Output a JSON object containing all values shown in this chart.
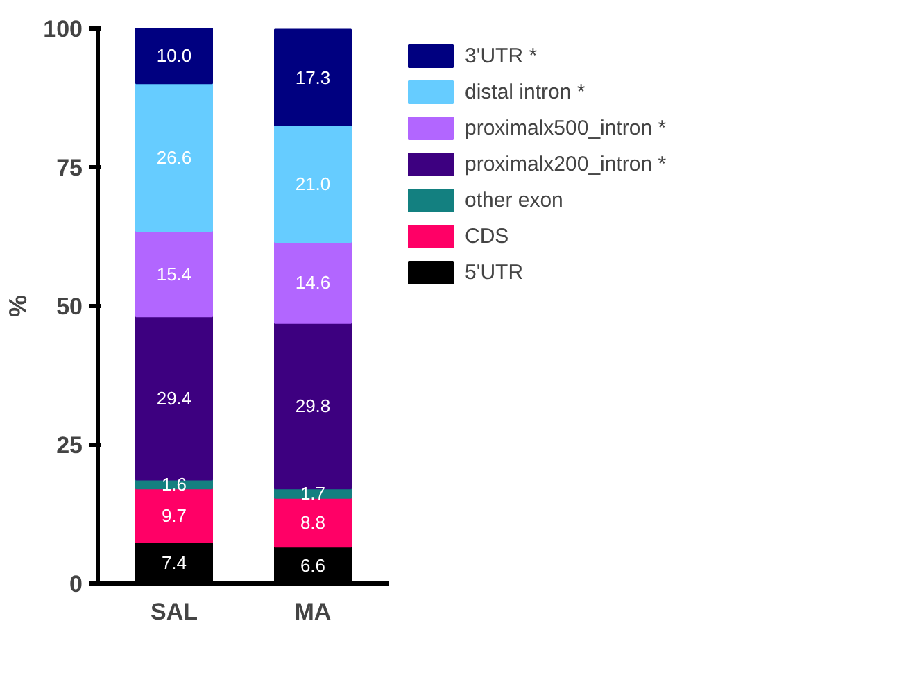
{
  "chart_data": {
    "type": "bar",
    "stacked": true,
    "ylabel": "%",
    "categories": [
      "SAL",
      "MA"
    ],
    "ylim": [
      0,
      100
    ],
    "yticks": [
      0,
      25,
      50,
      75,
      100
    ],
    "grid": false,
    "legend": "right",
    "series": [
      {
        "name": "5'UTR",
        "color": "#000000",
        "values": [
          7.4,
          6.6
        ],
        "value_labels": [
          "7.4",
          "6.6"
        ]
      },
      {
        "name": "CDS",
        "color": "#ff0066",
        "values": [
          9.7,
          8.8
        ],
        "value_labels": [
          "9.7",
          "8.8"
        ]
      },
      {
        "name": "other exon",
        "color": "#138080",
        "values": [
          1.6,
          1.7
        ],
        "value_labels": [
          "1.6",
          "1.7"
        ]
      },
      {
        "name": "proximalx200_intron *",
        "color": "#3d0080",
        "values": [
          29.4,
          29.8
        ],
        "value_labels": [
          "29.4",
          "29.8"
        ]
      },
      {
        "name": "proximalx500_intron *",
        "color": "#b266ff",
        "values": [
          15.4,
          14.6
        ],
        "value_labels": [
          "15.4",
          "14.6"
        ]
      },
      {
        "name": "distal intron *",
        "color": "#66ccff",
        "values": [
          26.6,
          21.0
        ],
        "value_labels": [
          "26.6",
          "21.0"
        ]
      },
      {
        "name": "3'UTR *",
        "color": "#000080",
        "values": [
          10.0,
          17.3
        ],
        "value_labels": [
          "10.0",
          "17.3"
        ]
      }
    ]
  }
}
